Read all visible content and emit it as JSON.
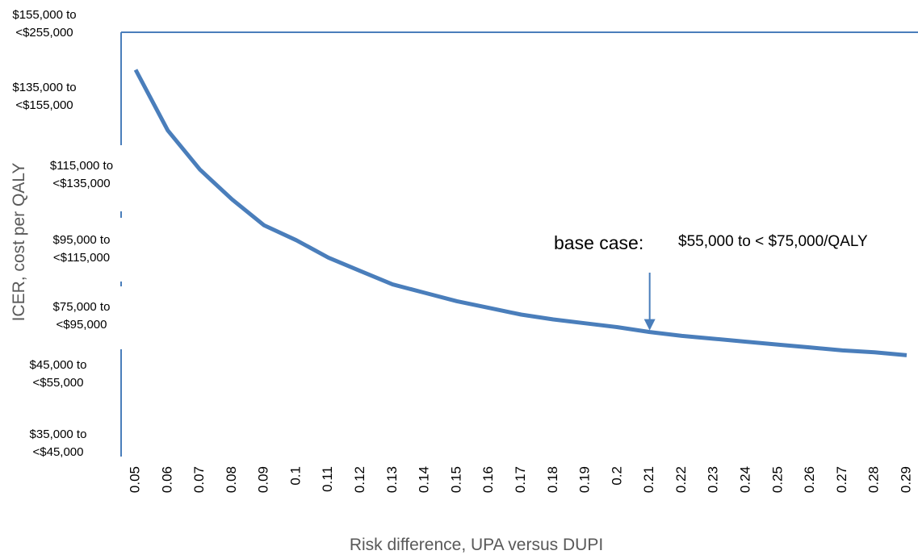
{
  "chart_data": {
    "type": "line",
    "y_label": "ICER, cost per QALY",
    "x_label": "Risk difference, UPA versus DUPI",
    "categories": [
      "0.05",
      "0.06",
      "0.07",
      "0.08",
      "0.09",
      "0.1",
      "0.11",
      "0.12",
      "0.13",
      "0.14",
      "0.15",
      "0.16",
      "0.17",
      "0.18",
      "0.19",
      "0.2",
      "0.21",
      "0.22",
      "0.23",
      "0.24",
      "0.25",
      "0.26",
      "0.27",
      "0.28",
      "0.29"
    ],
    "series": [
      {
        "name": "ICER",
        "color": "#4a7ebb",
        "values": [
          142000,
          126000,
          116000,
          108000,
          101000,
          97000,
          92000,
          88000,
          84000,
          81500,
          79000,
          77000,
          75000,
          72500,
          70500,
          68500,
          66000,
          64000,
          62500,
          61000,
          59500,
          58000,
          56500,
          55500,
          54000
        ]
      }
    ],
    "yticks": [
      {
        "value": 35000,
        "label": "$35,000 to <$45,000"
      },
      {
        "value": 45000,
        "label": "$45,000 to <$55,000"
      },
      {
        "value": 75000,
        "label": "$75,000 to <$95,000"
      },
      {
        "value": 95000,
        "label": "$95,000 to <$115,000"
      },
      {
        "value": 115000,
        "label": "$115,000 to <$135,000"
      },
      {
        "value": 135000,
        "label": "$135,000 to <$155,000"
      },
      {
        "value": 155000,
        "label": "$155,000 to <$255,000"
      }
    ],
    "annotation": {
      "label": "base case:",
      "text": "$55,000 to < $75,000/QALY",
      "x": "0.21"
    }
  }
}
